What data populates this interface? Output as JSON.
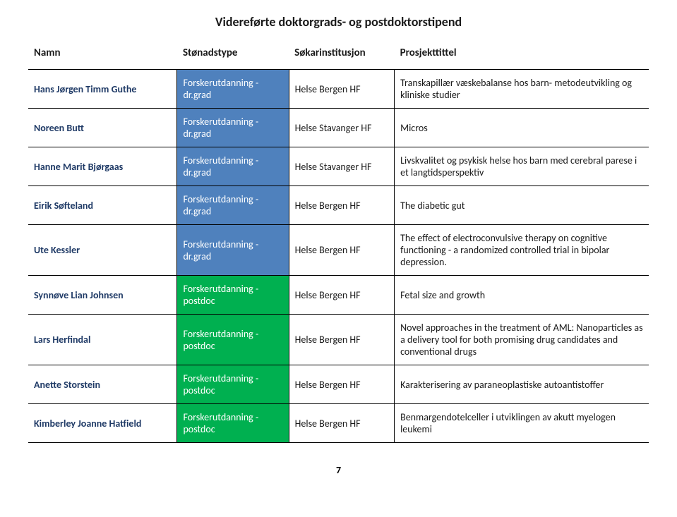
{
  "title": "Videreførte doktorgrads- og postdoktorstipend",
  "headers": {
    "name": "Namn",
    "type": "Stønadstype",
    "inst": "Søkarinstitusjon",
    "proj": "Prosjekttittel"
  },
  "colors": {
    "drgrad": "#4f81bd",
    "postdoc": "#00b050",
    "name_text": "#1f3a66"
  },
  "rows": [
    {
      "name": "Hans Jørgen Timm Guthe",
      "type": "Forskerutdanning - dr.grad",
      "type_color": "#4f81bd",
      "inst": "Helse Bergen HF",
      "proj": "Transkapillær væskebalanse hos barn- metodeutvikling og kliniske studier"
    },
    {
      "name": "Noreen Butt",
      "type": "Forskerutdanning - dr.grad",
      "type_color": "#4f81bd",
      "inst": "Helse Stavanger HF",
      "proj": "Micros"
    },
    {
      "name": "Hanne Marit Bjørgaas",
      "type": "Forskerutdanning - dr.grad",
      "type_color": "#4f81bd",
      "inst": "Helse Stavanger HF",
      "proj": "Livskvalitet og psykisk helse hos barn med cerebral parese i et langtidsperspektiv"
    },
    {
      "name": "Eirik Søfteland",
      "type": "Forskerutdanning - dr.grad",
      "type_color": "#4f81bd",
      "inst": "Helse Bergen HF",
      "proj": "The diabetic gut"
    },
    {
      "name": "Ute Kessler",
      "type": "Forskerutdanning - dr.grad",
      "type_color": "#4f81bd",
      "inst": "Helse Bergen HF",
      "proj": "The effect of electroconvulsive therapy on cognitive functioning - a randomized controlled trial in bipolar depression."
    },
    {
      "name": "Synnøve Lian Johnsen",
      "type": "Forskerutdanning - postdoc",
      "type_color": "#00b050",
      "inst": "Helse Bergen HF",
      "proj": "Fetal size and growth"
    },
    {
      "name": "Lars Herfindal",
      "type": "Forskerutdanning - postdoc",
      "type_color": "#00b050",
      "inst": "Helse Bergen HF",
      "proj": "Novel approaches in the treatment of AML: Nanoparticles as a delivery tool for both promising drug candidates and conventional drugs"
    },
    {
      "name": "Anette Storstein",
      "type": "Forskerutdanning - postdoc",
      "type_color": "#00b050",
      "inst": "Helse Bergen HF",
      "proj": "Karakterisering av paraneoplastiske autoantistoffer"
    },
    {
      "name": "Kimberley Joanne Hatfield",
      "type": "Forskerutdanning - postdoc",
      "type_color": "#00b050",
      "inst": "Helse Bergen HF",
      "proj": "Benmargendotelceller i utviklingen av akutt myelogen leukemi"
    }
  ],
  "page_number": "7"
}
